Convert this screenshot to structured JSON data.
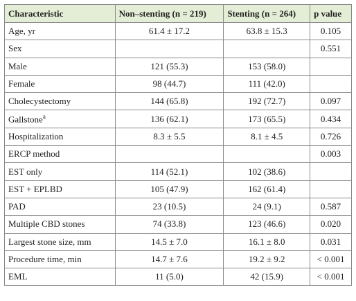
{
  "table": {
    "header": [
      "Characteristic",
      "Non–stenting (n = 219)",
      "Stenting (n = 264)",
      "p value"
    ],
    "rows": [
      [
        "Age, yr",
        "61.4 ± 17.2",
        "63.8 ± 15.3",
        "0.105"
      ],
      [
        "Sex",
        null,
        null,
        "0.551"
      ],
      [
        "Male",
        "121 (55.3)",
        "153 (58.0)",
        null
      ],
      [
        "Female",
        "98 (44.7)",
        "111 (42.0)",
        null
      ],
      [
        "Cholecystectomy",
        "144 (65.8)",
        "192 (72.7)",
        "0.097"
      ],
      [
        {
          "text": "Gallstone",
          "superscript": "a"
        },
        "136 (62.1)",
        "173 (65.5)",
        "0.434"
      ],
      [
        "Hospitalization",
        "8.3 ± 5.5",
        "8.1 ± 4.5",
        "0.726"
      ],
      [
        "ERCP method",
        null,
        null,
        "0.003"
      ],
      [
        "EST only",
        "114 (52.1)",
        "102 (38.6)",
        null
      ],
      [
        "EST + EPLBD",
        "105 (47.9)",
        "162 (61.4)",
        null
      ],
      [
        "PAD",
        "23 (10.5)",
        "24 (9.1)",
        "0.587"
      ],
      [
        "Multiple CBD stones",
        "74 (33.8)",
        "123 (46.6)",
        "0.020"
      ],
      [
        "Largest stone size, mm",
        "14.5 ± 7.0",
        "16.1 ± 8.0",
        "0.031"
      ],
      [
        "Procedure time, min",
        "14.7 ± 7.6",
        "19.2 ± 9.2",
        "< 0.001"
      ],
      [
        "EML",
        "11 (5.0)",
        "42 (15.9)",
        "< 0.001"
      ]
    ]
  }
}
